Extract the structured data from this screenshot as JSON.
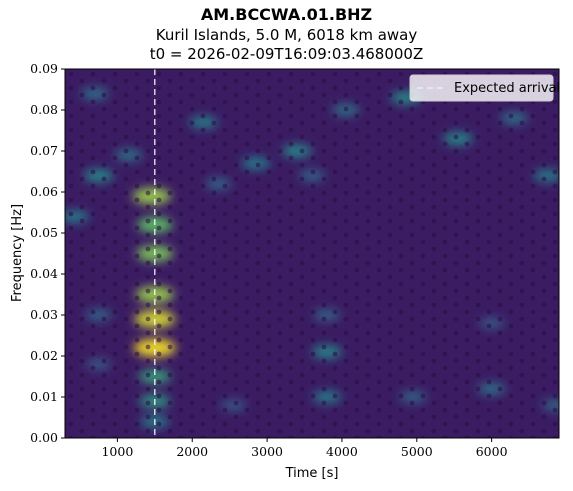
{
  "header": {
    "title": "AM.BCCWA.01.BHZ",
    "subtitle": "Kuril Islands, 5.0 M, 6018 km away",
    "t0_line": "t0 = 2026-02-09T16:09:03.468000Z"
  },
  "chart_data": {
    "type": "heatmap",
    "title": "AM.BCCWA.01.BHZ",
    "subtitle": "Kuril Islands, 5.0 M, 6018 km away",
    "t0": "t0 = 2026-02-09T16:09:03.468000Z",
    "xlabel": "Time [s]",
    "ylabel": "Frequency [Hz]",
    "xlim": [
      300,
      6900
    ],
    "ylim": [
      0.0,
      0.09
    ],
    "x_ticks": [
      1000,
      2000,
      3000,
      4000,
      5000,
      6000
    ],
    "y_ticks": [
      0.0,
      0.01,
      0.02,
      0.03,
      0.04,
      0.05,
      0.06,
      0.07,
      0.08,
      0.09
    ],
    "x_tick_labels": [
      "1000",
      "2000",
      "3000",
      "4000",
      "5000",
      "6000"
    ],
    "y_tick_labels": [
      "0.00",
      "0.01",
      "0.02",
      "0.03",
      "0.04",
      "0.05",
      "0.06",
      "0.07",
      "0.08",
      "0.09"
    ],
    "colormap": "viridis",
    "expected_arrival": {
      "x": 1500,
      "label": "Expected arrival",
      "style": "dashed",
      "color": "#ffffff"
    },
    "legend": {
      "position": "top-right",
      "entries": [
        "Expected arrival"
      ]
    },
    "energy_hotspots": [
      {
        "time": 1500,
        "freq": 0.022,
        "intensity": 1.0
      },
      {
        "time": 1500,
        "freq": 0.029,
        "intensity": 0.95
      },
      {
        "time": 1500,
        "freq": 0.035,
        "intensity": 0.85
      },
      {
        "time": 1500,
        "freq": 0.045,
        "intensity": 0.8
      },
      {
        "time": 1500,
        "freq": 0.052,
        "intensity": 0.75
      },
      {
        "time": 1460,
        "freq": 0.059,
        "intensity": 0.85
      },
      {
        "time": 1500,
        "freq": 0.015,
        "intensity": 0.6
      },
      {
        "time": 1500,
        "freq": 0.009,
        "intensity": 0.55
      },
      {
        "time": 1500,
        "freq": 0.004,
        "intensity": 0.45
      },
      {
        "time": 750,
        "freq": 0.064,
        "intensity": 0.5
      },
      {
        "time": 430,
        "freq": 0.054,
        "intensity": 0.45
      },
      {
        "time": 700,
        "freq": 0.084,
        "intensity": 0.4
      },
      {
        "time": 1150,
        "freq": 0.069,
        "intensity": 0.4
      },
      {
        "time": 2150,
        "freq": 0.077,
        "intensity": 0.45
      },
      {
        "time": 2350,
        "freq": 0.062,
        "intensity": 0.35
      },
      {
        "time": 2850,
        "freq": 0.067,
        "intensity": 0.45
      },
      {
        "time": 3400,
        "freq": 0.07,
        "intensity": 0.5
      },
      {
        "time": 3600,
        "freq": 0.064,
        "intensity": 0.35
      },
      {
        "time": 4050,
        "freq": 0.08,
        "intensity": 0.4
      },
      {
        "time": 4850,
        "freq": 0.083,
        "intensity": 0.5
      },
      {
        "time": 5550,
        "freq": 0.073,
        "intensity": 0.5
      },
      {
        "time": 6300,
        "freq": 0.078,
        "intensity": 0.4
      },
      {
        "time": 6750,
        "freq": 0.064,
        "intensity": 0.45
      },
      {
        "time": 3800,
        "freq": 0.021,
        "intensity": 0.5
      },
      {
        "time": 3800,
        "freq": 0.01,
        "intensity": 0.45
      },
      {
        "time": 3800,
        "freq": 0.03,
        "intensity": 0.35
      },
      {
        "time": 6000,
        "freq": 0.012,
        "intensity": 0.4
      },
      {
        "time": 6000,
        "freq": 0.028,
        "intensity": 0.3
      },
      {
        "time": 4950,
        "freq": 0.01,
        "intensity": 0.35
      },
      {
        "time": 2550,
        "freq": 0.008,
        "intensity": 0.3
      },
      {
        "time": 750,
        "freq": 0.03,
        "intensity": 0.35
      },
      {
        "time": 750,
        "freq": 0.018,
        "intensity": 0.3
      },
      {
        "time": 6850,
        "freq": 0.008,
        "intensity": 0.35
      }
    ]
  }
}
